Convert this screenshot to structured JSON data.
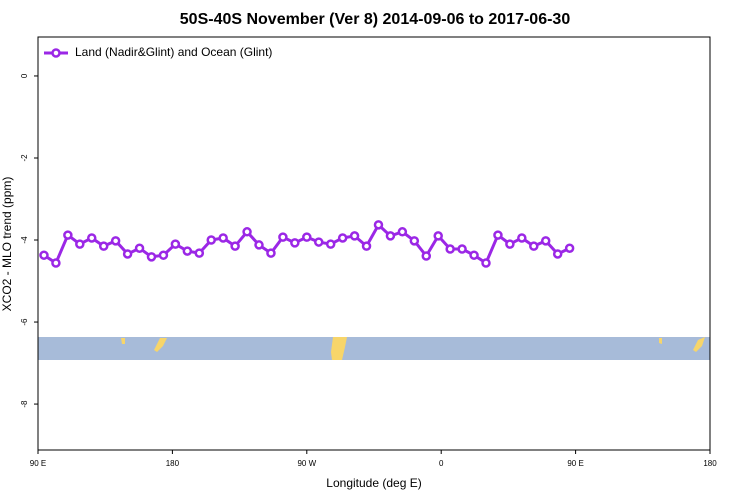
{
  "chart_data": {
    "type": "line",
    "title": "50S-40S November (Ver 8)   2014-09-06 to 2017-06-30",
    "x_label": "Longitude (deg E)",
    "y_label": "XCO2 - MLO trend (ppm)",
    "x": [
      94,
      102,
      110,
      118,
      126,
      134,
      142,
      150,
      158,
      166,
      174,
      182,
      190,
      198,
      206,
      214,
      222,
      230,
      238,
      246,
      254,
      262,
      270,
      278,
      286,
      294,
      302,
      310,
      318,
      326,
      334,
      342,
      350,
      358,
      366,
      374,
      382,
      390,
      398,
      406,
      414,
      422,
      430,
      438,
      446
    ],
    "series": [
      {
        "name": "Land (Nadir&Glint) and Ocean (Glint)",
        "color": "#9b27e6",
        "values": [
          -4.37,
          -4.56,
          -3.88,
          -4.1,
          -3.95,
          -4.15,
          -4.02,
          -4.34,
          -4.2,
          -4.41,
          -4.37,
          -4.1,
          -4.27,
          -4.32,
          -4.0,
          -3.95,
          -4.15,
          -3.8,
          -4.12,
          -4.32,
          -3.93,
          -4.07,
          -3.93,
          -4.05,
          -4.1,
          -3.95,
          -3.9,
          -4.15,
          -3.63,
          -3.9,
          -3.8,
          -4.02,
          -4.39,
          -3.9,
          -4.22,
          -4.22,
          -4.37,
          -4.56,
          -3.88,
          -4.1,
          -3.95,
          -4.15,
          -4.02,
          -4.34,
          -4.2
        ]
      }
    ],
    "xlim": [
      90,
      540
    ],
    "xticks": [
      {
        "value": 90,
        "label": "90 E"
      },
      180,
      {
        "value": 270,
        "label": "90 W"
      },
      {
        "value": 360,
        "label": "0"
      },
      {
        "value": 450,
        "label": "90 E"
      },
      {
        "value": 540,
        "label": "180"
      }
    ],
    "ylim": [
      -9.12,
      0.95
    ],
    "yticks": [
      0,
      -2,
      -4,
      -6,
      -8
    ],
    "legend": "top-left"
  }
}
